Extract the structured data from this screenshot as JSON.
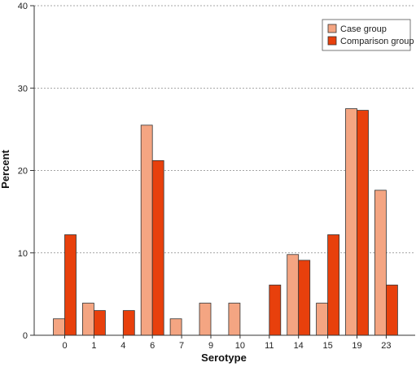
{
  "chart_data": {
    "type": "bar",
    "title": "",
    "xlabel": "Serotype",
    "ylabel": "Percent",
    "ylim": [
      0,
      40
    ],
    "yticks": [
      0,
      10,
      20,
      30,
      40
    ],
    "grid": "horizontal dashed",
    "legend_position": "top-right",
    "categories": [
      "0",
      "1",
      "4",
      "6",
      "7",
      "9",
      "10",
      "11",
      "14",
      "15",
      "19",
      "23"
    ],
    "series": [
      {
        "name": "Case group",
        "color": "#f4a582",
        "values": [
          2.0,
          3.9,
          0,
          25.5,
          2.0,
          3.9,
          3.9,
          0,
          9.8,
          3.9,
          27.5,
          17.6
        ]
      },
      {
        "name": "Comparison group",
        "color": "#e8400c",
        "values": [
          12.2,
          3.0,
          3.0,
          21.2,
          0,
          0,
          0,
          6.1,
          9.1,
          12.2,
          27.3,
          6.1
        ]
      }
    ]
  }
}
